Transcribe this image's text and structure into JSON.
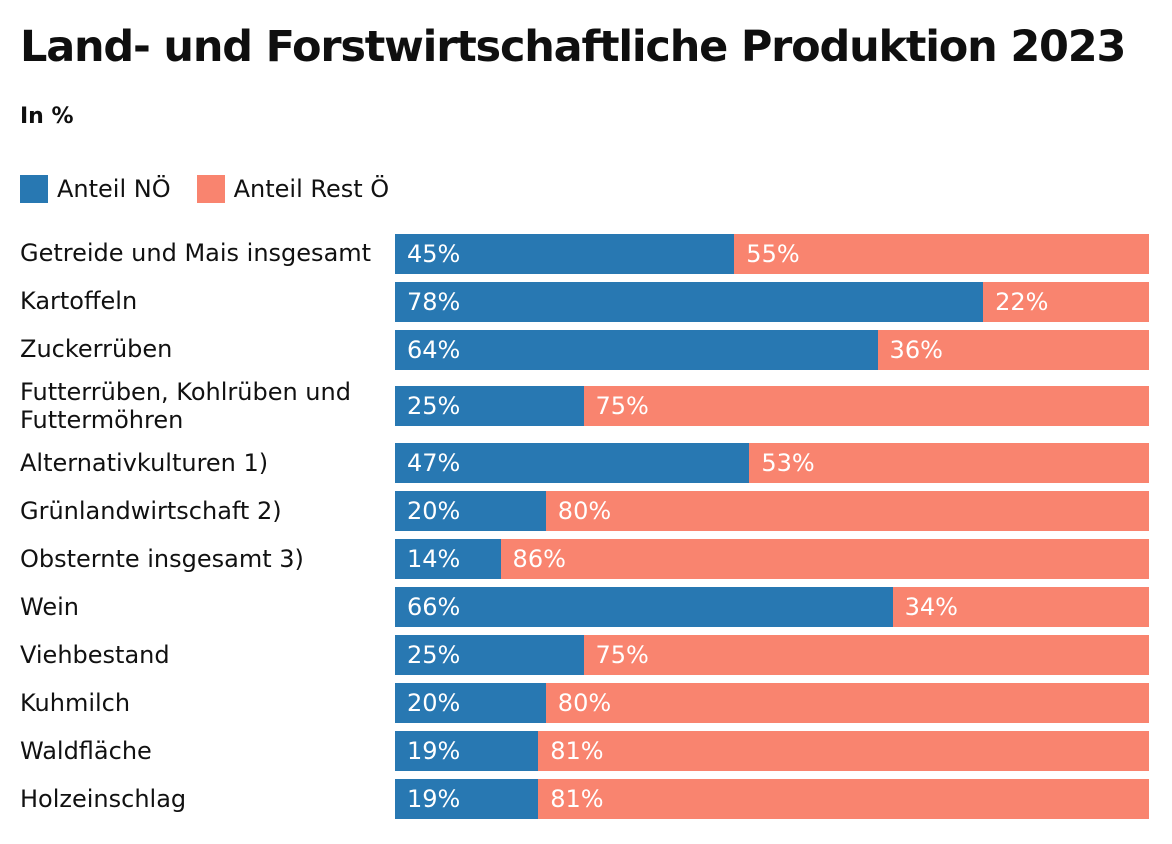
{
  "title": "Land- und Forstwirtschaftliche Produktion 2023",
  "subtitle": "In %",
  "legend": [
    {
      "label": "Anteil NÖ",
      "color": "#2878b2"
    },
    {
      "label": "Anteil Rest Ö",
      "color": "#f9846f"
    }
  ],
  "colors": {
    "background": "#ffffff",
    "text": "#111111",
    "bar_value_text": "#ffffff",
    "anteil_noe": "#2878b2",
    "anteil_rest_oe": "#f9846f"
  },
  "chart_data": {
    "type": "bar",
    "orientation": "horizontal",
    "stacked": true,
    "unit": "%",
    "title": "Land- und Forstwirtschaftliche Produktion 2023",
    "subtitle": "In %",
    "xlim": [
      0,
      100
    ],
    "grid": false,
    "legend_position": "top-left",
    "value_labels": "inside-segment-start",
    "categories": [
      "Getreide und Mais insgesamt",
      "Kartoffeln",
      "Zuckerrüben",
      "Futterrüben, Kohlrüben und Futtermöhren",
      "Alternativkulturen 1)",
      "Grünlandwirtschaft 2)",
      "Obsternte insgesamt 3)",
      "Wein",
      "Viehbestand",
      "Kuhmilch",
      "Waldfläche",
      "Holzeinschlag"
    ],
    "series": [
      {
        "name": "Anteil NÖ",
        "color": "#2878b2",
        "values": [
          45,
          78,
          64,
          25,
          47,
          20,
          14,
          66,
          25,
          20,
          19,
          19
        ]
      },
      {
        "name": "Anteil Rest Ö",
        "color": "#f9846f",
        "values": [
          55,
          22,
          36,
          75,
          53,
          80,
          86,
          34,
          75,
          80,
          81,
          81
        ]
      }
    ]
  }
}
